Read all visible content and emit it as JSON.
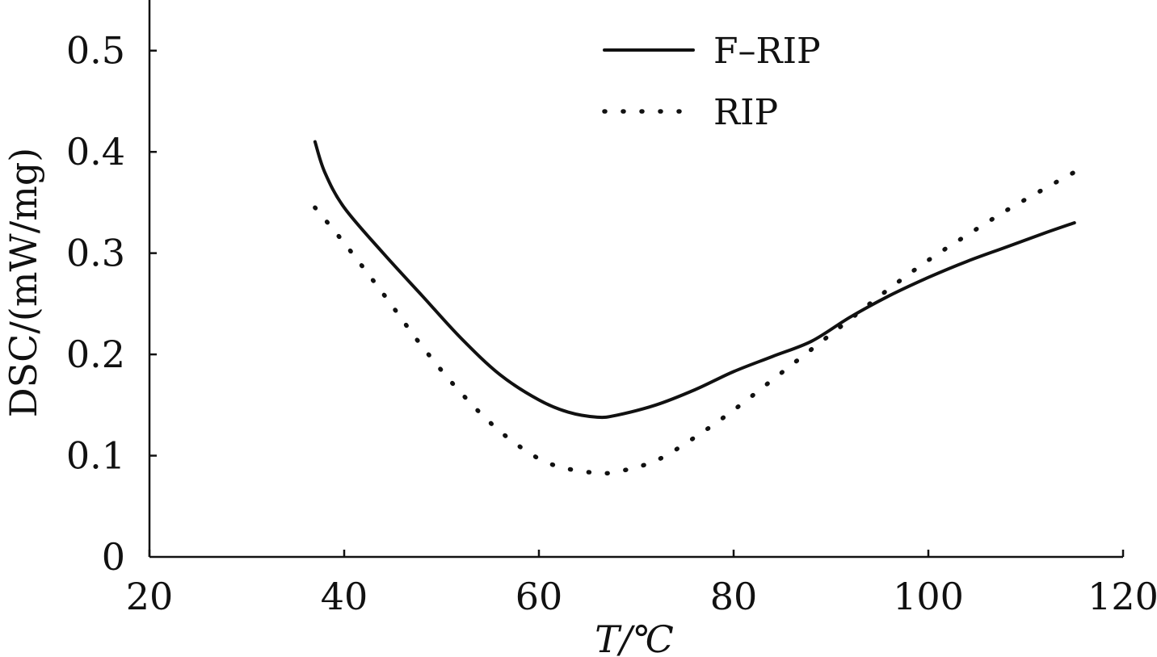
{
  "chart_data": {
    "type": "line",
    "title": "",
    "xlabel": "T/℃",
    "ylabel": "DSC/(mW/mg)",
    "xlim": [
      20,
      120
    ],
    "ylim": [
      0,
      0.55
    ],
    "xticks": [
      20,
      40,
      60,
      80,
      100,
      120
    ],
    "xtick_labels": [
      "20",
      "40",
      "60",
      "80",
      "100",
      "120"
    ],
    "yticks": [
      0,
      0.1,
      0.2,
      0.3,
      0.4,
      0.5
    ],
    "ytick_labels": [
      "0",
      "0.1",
      "0.2",
      "0.3",
      "0.4",
      "0.5"
    ],
    "grid": false,
    "legend_position": "top-center",
    "series": [
      {
        "name": "F–RIP",
        "style": "solid",
        "color": "#111111",
        "x": [
          37,
          38,
          40,
          44,
          48,
          52,
          56,
          60,
          63,
          66,
          68,
          72,
          76,
          80,
          84,
          88,
          92,
          96,
          100,
          104,
          108,
          112,
          115
        ],
        "y": [
          0.41,
          0.38,
          0.345,
          0.3,
          0.258,
          0.216,
          0.18,
          0.155,
          0.143,
          0.138,
          0.14,
          0.15,
          0.165,
          0.183,
          0.198,
          0.213,
          0.237,
          0.258,
          0.276,
          0.292,
          0.306,
          0.32,
          0.33
        ]
      },
      {
        "name": "RIP",
        "style": "dotted",
        "color": "#111111",
        "x": [
          37,
          40,
          44,
          48,
          52,
          56,
          60,
          63,
          66,
          68,
          72,
          76,
          80,
          84,
          88,
          92,
          96,
          100,
          104,
          108,
          112,
          115
        ],
        "y": [
          0.345,
          0.31,
          0.26,
          0.208,
          0.162,
          0.124,
          0.097,
          0.087,
          0.083,
          0.084,
          0.095,
          0.118,
          0.145,
          0.175,
          0.205,
          0.235,
          0.265,
          0.293,
          0.318,
          0.342,
          0.364,
          0.38
        ]
      }
    ]
  }
}
